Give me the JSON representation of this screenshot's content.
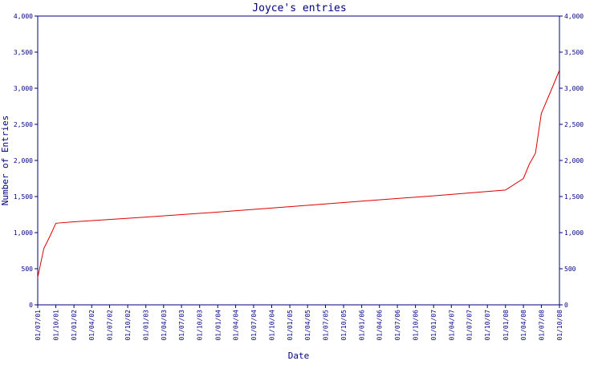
{
  "chart_data": {
    "type": "line",
    "title": "Joyce's entries",
    "xlabel": "Date",
    "ylabel": "Number of Entries",
    "ylim": [
      0,
      4000
    ],
    "y_ticks": [
      {
        "value": 0,
        "label": "0"
      },
      {
        "value": 500,
        "label": "500"
      },
      {
        "value": 1000,
        "label": "1,000"
      },
      {
        "value": 1500,
        "label": "1,500"
      },
      {
        "value": 2000,
        "label": "2,000"
      },
      {
        "value": 2500,
        "label": "2,500"
      },
      {
        "value": 3000,
        "label": "3,000"
      },
      {
        "value": 3500,
        "label": "3,500"
      },
      {
        "value": 4000,
        "label": "4,000"
      }
    ],
    "x_ticks": [
      "01/07/01",
      "01/10/01",
      "01/01/02",
      "01/04/02",
      "01/07/02",
      "01/10/02",
      "01/01/03",
      "01/04/03",
      "01/07/03",
      "01/10/03",
      "01/01/04",
      "01/04/04",
      "01/07/04",
      "01/10/04",
      "01/01/05",
      "01/04/05",
      "01/07/05",
      "01/10/05",
      "01/01/06",
      "01/04/06",
      "01/07/06",
      "01/10/06",
      "01/01/07",
      "01/04/07",
      "01/07/07",
      "01/10/07",
      "01/01/08",
      "01/04/08",
      "01/07/08",
      "01/10/08"
    ],
    "x_range": [
      "01/07/01",
      "01/10/08"
    ],
    "grid": false,
    "colors": {
      "axis": "#000080",
      "line": "#dd0000"
    },
    "series": [
      {
        "x": [
          "01/07/01",
          "01/08/01",
          "01/09/01",
          "01/10/01",
          "01/01/02",
          "01/01/03",
          "01/01/04",
          "01/01/05",
          "01/01/06",
          "01/01/07",
          "01/01/08",
          "01/04/08",
          "01/05/08",
          "01/06/08",
          "01/07/08",
          "01/08/08",
          "01/09/08",
          "01/10/08"
        ],
        "values": [
          380,
          780,
          950,
          1130,
          1150,
          1215,
          1285,
          1360,
          1435,
          1510,
          1590,
          1750,
          1950,
          2100,
          2650,
          2850,
          3050,
          3250
        ]
      }
    ]
  }
}
